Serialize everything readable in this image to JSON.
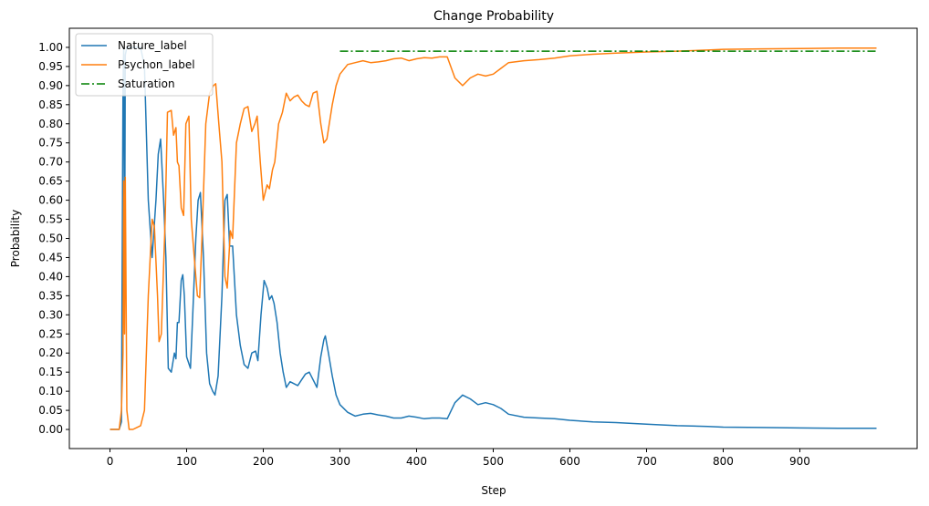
{
  "chart_data": {
    "type": "line",
    "title": "Change Probability",
    "xlabel": "Step",
    "ylabel": "Probability",
    "xlim": [
      -53,
      1053
    ],
    "ylim": [
      -0.05,
      1.05
    ],
    "xticks": [
      0,
      100,
      200,
      300,
      400,
      500,
      600,
      700,
      800,
      900
    ],
    "yticks": [
      0.0,
      0.05,
      0.1,
      0.15,
      0.2,
      0.25,
      0.3,
      0.35,
      0.4,
      0.45,
      0.5,
      0.55,
      0.6,
      0.65,
      0.7,
      0.75,
      0.8,
      0.85,
      0.9,
      0.95,
      1.0
    ],
    "grid": false,
    "legend_position": "top-left",
    "series": [
      {
        "name": "Nature_label",
        "color": "#1f77b4",
        "style": "solid",
        "points": [
          [
            0,
            0
          ],
          [
            12,
            0
          ],
          [
            15,
            0.02
          ],
          [
            17,
            0.9
          ],
          [
            18,
            1.0
          ],
          [
            19,
            0.35
          ],
          [
            20,
            0.98
          ],
          [
            22,
            1.0
          ],
          [
            30,
            1.0
          ],
          [
            40,
            1.0
          ],
          [
            45,
            0.95
          ],
          [
            50,
            0.6
          ],
          [
            55,
            0.45
          ],
          [
            60,
            0.6
          ],
          [
            63,
            0.72
          ],
          [
            66,
            0.76
          ],
          [
            70,
            0.6
          ],
          [
            73,
            0.45
          ],
          [
            76,
            0.16
          ],
          [
            80,
            0.15
          ],
          [
            84,
            0.2
          ],
          [
            86,
            0.185
          ],
          [
            88,
            0.28
          ],
          [
            90,
            0.28
          ],
          [
            93,
            0.39
          ],
          [
            95,
            0.405
          ],
          [
            97,
            0.35
          ],
          [
            100,
            0.19
          ],
          [
            105,
            0.16
          ],
          [
            108,
            0.3
          ],
          [
            112,
            0.5
          ],
          [
            115,
            0.6
          ],
          [
            118,
            0.62
          ],
          [
            122,
            0.45
          ],
          [
            126,
            0.2
          ],
          [
            130,
            0.12
          ],
          [
            134,
            0.1
          ],
          [
            137,
            0.09
          ],
          [
            141,
            0.14
          ],
          [
            146,
            0.35
          ],
          [
            150,
            0.6
          ],
          [
            153,
            0.615
          ],
          [
            156,
            0.48
          ],
          [
            160,
            0.48
          ],
          [
            165,
            0.3
          ],
          [
            170,
            0.22
          ],
          [
            175,
            0.17
          ],
          [
            180,
            0.16
          ],
          [
            185,
            0.2
          ],
          [
            190,
            0.205
          ],
          [
            193,
            0.18
          ],
          [
            197,
            0.3
          ],
          [
            201,
            0.39
          ],
          [
            205,
            0.37
          ],
          [
            208,
            0.34
          ],
          [
            211,
            0.35
          ],
          [
            214,
            0.33
          ],
          [
            218,
            0.28
          ],
          [
            222,
            0.2
          ],
          [
            226,
            0.15
          ],
          [
            230,
            0.11
          ],
          [
            235,
            0.125
          ],
          [
            240,
            0.12
          ],
          [
            245,
            0.115
          ],
          [
            250,
            0.13
          ],
          [
            255,
            0.145
          ],
          [
            260,
            0.15
          ],
          [
            265,
            0.13
          ],
          [
            270,
            0.11
          ],
          [
            275,
            0.19
          ],
          [
            279,
            0.235
          ],
          [
            281,
            0.245
          ],
          [
            285,
            0.2
          ],
          [
            290,
            0.14
          ],
          [
            295,
            0.09
          ],
          [
            300,
            0.065
          ],
          [
            310,
            0.045
          ],
          [
            320,
            0.035
          ],
          [
            330,
            0.04
          ],
          [
            340,
            0.042
          ],
          [
            350,
            0.038
          ],
          [
            360,
            0.035
          ],
          [
            370,
            0.03
          ],
          [
            380,
            0.03
          ],
          [
            390,
            0.035
          ],
          [
            400,
            0.032
          ],
          [
            410,
            0.028
          ],
          [
            420,
            0.03
          ],
          [
            430,
            0.03
          ],
          [
            440,
            0.028
          ],
          [
            450,
            0.07
          ],
          [
            460,
            0.09
          ],
          [
            470,
            0.08
          ],
          [
            480,
            0.065
          ],
          [
            490,
            0.07
          ],
          [
            500,
            0.065
          ],
          [
            510,
            0.055
          ],
          [
            520,
            0.04
          ],
          [
            540,
            0.032
          ],
          [
            560,
            0.03
          ],
          [
            580,
            0.028
          ],
          [
            600,
            0.024
          ],
          [
            630,
            0.02
          ],
          [
            660,
            0.018
          ],
          [
            700,
            0.014
          ],
          [
            740,
            0.01
          ],
          [
            780,
            0.008
          ],
          [
            800,
            0.006
          ],
          [
            850,
            0.005
          ],
          [
            900,
            0.004
          ],
          [
            950,
            0.003
          ],
          [
            1000,
            0.003
          ]
        ]
      },
      {
        "name": "Psychon_label",
        "color": "#ff7f0e",
        "style": "solid",
        "points": [
          [
            0,
            0
          ],
          [
            12,
            0
          ],
          [
            15,
            0.05
          ],
          [
            17,
            0.2
          ],
          [
            18,
            0.65
          ],
          [
            19,
            0.25
          ],
          [
            20,
            0.66
          ],
          [
            22,
            0.05
          ],
          [
            25,
            0
          ],
          [
            30,
            0
          ],
          [
            35,
            0.005
          ],
          [
            40,
            0.01
          ],
          [
            45,
            0.05
          ],
          [
            50,
            0.35
          ],
          [
            55,
            0.55
          ],
          [
            58,
            0.53
          ],
          [
            62,
            0.35
          ],
          [
            64,
            0.23
          ],
          [
            67,
            0.25
          ],
          [
            72,
            0.55
          ],
          [
            75,
            0.83
          ],
          [
            80,
            0.835
          ],
          [
            83,
            0.77
          ],
          [
            86,
            0.79
          ],
          [
            88,
            0.7
          ],
          [
            90,
            0.69
          ],
          [
            93,
            0.58
          ],
          [
            96,
            0.56
          ],
          [
            99,
            0.8
          ],
          [
            103,
            0.82
          ],
          [
            106,
            0.55
          ],
          [
            110,
            0.45
          ],
          [
            114,
            0.35
          ],
          [
            117,
            0.345
          ],
          [
            120,
            0.5
          ],
          [
            125,
            0.8
          ],
          [
            130,
            0.88
          ],
          [
            135,
            0.9
          ],
          [
            138,
            0.905
          ],
          [
            142,
            0.8
          ],
          [
            146,
            0.7
          ],
          [
            150,
            0.4
          ],
          [
            153,
            0.37
          ],
          [
            157,
            0.52
          ],
          [
            160,
            0.5
          ],
          [
            165,
            0.75
          ],
          [
            170,
            0.8
          ],
          [
            175,
            0.84
          ],
          [
            180,
            0.845
          ],
          [
            185,
            0.78
          ],
          [
            189,
            0.8
          ],
          [
            192,
            0.82
          ],
          [
            196,
            0.7
          ],
          [
            200,
            0.6
          ],
          [
            205,
            0.64
          ],
          [
            208,
            0.63
          ],
          [
            212,
            0.68
          ],
          [
            215,
            0.7
          ],
          [
            220,
            0.8
          ],
          [
            225,
            0.83
          ],
          [
            230,
            0.88
          ],
          [
            235,
            0.86
          ],
          [
            240,
            0.87
          ],
          [
            245,
            0.875
          ],
          [
            250,
            0.86
          ],
          [
            255,
            0.85
          ],
          [
            260,
            0.845
          ],
          [
            265,
            0.88
          ],
          [
            270,
            0.885
          ],
          [
            275,
            0.8
          ],
          [
            279,
            0.75
          ],
          [
            283,
            0.76
          ],
          [
            290,
            0.85
          ],
          [
            295,
            0.9
          ],
          [
            300,
            0.93
          ],
          [
            310,
            0.955
          ],
          [
            320,
            0.96
          ],
          [
            330,
            0.965
          ],
          [
            340,
            0.96
          ],
          [
            350,
            0.962
          ],
          [
            360,
            0.965
          ],
          [
            370,
            0.97
          ],
          [
            380,
            0.972
          ],
          [
            390,
            0.965
          ],
          [
            400,
            0.97
          ],
          [
            410,
            0.973
          ],
          [
            420,
            0.972
          ],
          [
            430,
            0.975
          ],
          [
            440,
            0.975
          ],
          [
            450,
            0.92
          ],
          [
            460,
            0.9
          ],
          [
            470,
            0.92
          ],
          [
            480,
            0.93
          ],
          [
            490,
            0.925
          ],
          [
            500,
            0.93
          ],
          [
            510,
            0.945
          ],
          [
            520,
            0.96
          ],
          [
            540,
            0.965
          ],
          [
            560,
            0.968
          ],
          [
            580,
            0.972
          ],
          [
            600,
            0.978
          ],
          [
            630,
            0.982
          ],
          [
            660,
            0.985
          ],
          [
            700,
            0.988
          ],
          [
            740,
            0.99
          ],
          [
            780,
            0.993
          ],
          [
            800,
            0.995
          ],
          [
            850,
            0.996
          ],
          [
            900,
            0.997
          ],
          [
            950,
            0.998
          ],
          [
            1000,
            0.998
          ]
        ]
      },
      {
        "name": "Saturation",
        "color": "#008000",
        "style": "dashdot",
        "points": [
          [
            300,
            0.99
          ],
          [
            1000,
            0.99
          ]
        ]
      }
    ]
  }
}
